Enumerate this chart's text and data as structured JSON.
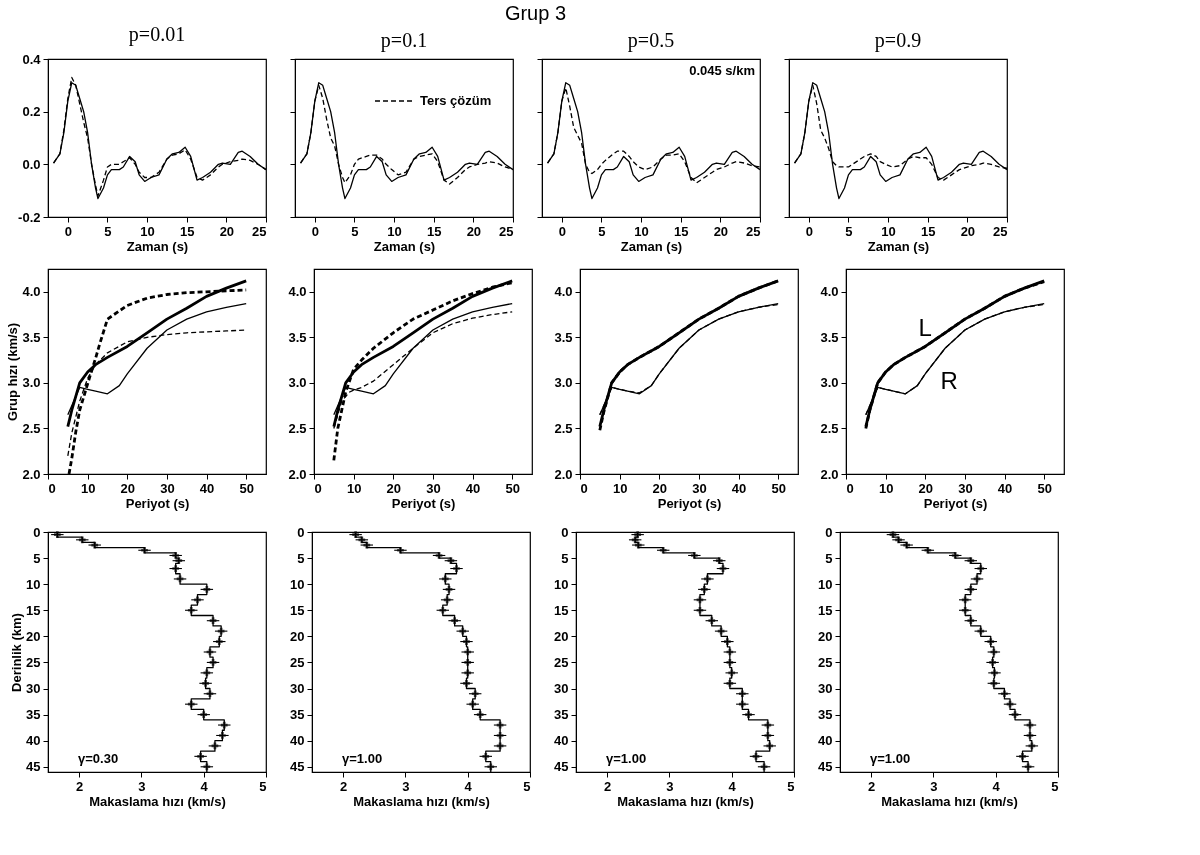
{
  "chart_data": [
    {
      "type": "line",
      "title": "p=0.01",
      "annotations": [
        "Grup 3"
      ],
      "xlabel": "Zaman (s)",
      "xlim": [
        -2.5,
        25
      ],
      "xticks": [
        0,
        5,
        10,
        15,
        20,
        25
      ],
      "ylim": [
        -0.2,
        0.4
      ],
      "yticks": [
        -0.2,
        {
          "value": 0,
          "label": "0.0"
        },
        0.2,
        0.4
      ],
      "x": [
        -1.8,
        -1,
        -0.5,
        0,
        0.5,
        1,
        1.5,
        2,
        2.5,
        3,
        3.5,
        3.8,
        4.5,
        5,
        5.5,
        6.5,
        7,
        7.8,
        8.5,
        9,
        9.7,
        10.5,
        11.5,
        12.5,
        13.2,
        14,
        14.8,
        15.5,
        16.3,
        17,
        18,
        19,
        19.5,
        20.5,
        21.5,
        22,
        23,
        24,
        25
      ],
      "series": [
        {
          "color": "#000000",
          "line_style": "solid",
          "values": [
            0.005,
            0.04,
            0.12,
            0.24,
            0.31,
            0.3,
            0.25,
            0.2,
            0.12,
            0.0,
            -0.09,
            -0.13,
            -0.09,
            -0.04,
            -0.02,
            -0.02,
            -0.01,
            0.03,
            0.01,
            -0.04,
            -0.065,
            -0.05,
            -0.04,
            0.02,
            0.04,
            0.045,
            0.065,
            0.03,
            -0.06,
            -0.05,
            -0.03,
            0.0,
            0.005,
            0.0,
            0.045,
            0.05,
            0.03,
            0.0,
            -0.02
          ]
        },
        {
          "color": "#000000",
          "line_style": "dashed",
          "values": [
            0.005,
            0.04,
            0.13,
            0.25,
            0.33,
            0.3,
            0.23,
            0.16,
            0.1,
            0.0,
            -0.08,
            -0.12,
            -0.06,
            -0.01,
            0.0,
            0.0,
            0.01,
            0.025,
            0.0,
            -0.03,
            -0.05,
            -0.05,
            -0.03,
            0.02,
            0.035,
            0.04,
            0.055,
            0.02,
            -0.05,
            -0.06,
            -0.04,
            -0.01,
            0.0,
            0.01,
            0.015,
            0.02,
            0.015,
            0.0,
            -0.02
          ]
        }
      ]
    },
    {
      "type": "line",
      "title": "p=0.1",
      "xlabel": "Zaman (s)",
      "xlim": [
        -2.5,
        25
      ],
      "xticks": [
        0,
        5,
        10,
        15,
        20,
        25
      ],
      "ylim": [
        -0.2,
        0.4
      ],
      "yticks": [
        -0.2,
        0,
        0.2,
        0.4
      ],
      "tick_labels": "x",
      "legend": "top right",
      "x": [
        -1.8,
        -1,
        -0.5,
        0,
        0.5,
        1,
        1.5,
        2,
        2.5,
        3,
        3.5,
        3.8,
        4.5,
        5,
        5.5,
        6.5,
        7,
        7.8,
        8.5,
        9,
        9.7,
        10.5,
        11.5,
        12.5,
        13.2,
        14,
        14.8,
        15.5,
        16.3,
        17,
        18,
        19,
        19.5,
        20.5,
        21.5,
        22,
        23,
        24,
        25
      ],
      "series": [
        {
          "color": "#000000",
          "line_style": "solid",
          "values": [
            0.005,
            0.04,
            0.12,
            0.24,
            0.31,
            0.3,
            0.25,
            0.2,
            0.12,
            0.0,
            -0.09,
            -0.13,
            -0.09,
            -0.04,
            -0.02,
            -0.02,
            -0.01,
            0.03,
            0.01,
            -0.04,
            -0.065,
            -0.05,
            -0.04,
            0.02,
            0.04,
            0.045,
            0.065,
            0.03,
            -0.06,
            -0.05,
            -0.03,
            0.0,
            0.005,
            0.0,
            0.045,
            0.05,
            0.03,
            0.0,
            -0.02
          ]
        },
        {
          "name": "Ters çözüm",
          "color": "#000000",
          "line_style": "dashed",
          "values": [
            0.005,
            0.04,
            0.12,
            0.24,
            0.3,
            0.25,
            0.17,
            0.1,
            0.07,
            0.0,
            -0.05,
            -0.07,
            -0.04,
            0.0,
            0.02,
            0.03,
            0.035,
            0.035,
            0.02,
            0.0,
            -0.02,
            -0.04,
            -0.03,
            0.02,
            0.03,
            0.035,
            0.04,
            0.01,
            -0.06,
            -0.075,
            -0.05,
            -0.02,
            -0.01,
            0.0,
            0.005,
            0.01,
            0.005,
            -0.01,
            -0.02
          ]
        }
      ]
    },
    {
      "type": "line",
      "title": "p=0.5",
      "annotations": [
        "0.045 s/km"
      ],
      "xlabel": "Zaman (s)",
      "xlim": [
        -2.5,
        25
      ],
      "xticks": [
        0,
        5,
        10,
        15,
        20,
        25
      ],
      "ylim": [
        -0.2,
        0.4
      ],
      "yticks": [
        -0.2,
        0,
        0.2,
        0.4
      ],
      "tick_labels": "x",
      "x": [
        -1.8,
        -1,
        -0.5,
        0,
        0.5,
        1,
        1.5,
        2,
        2.5,
        3,
        3.5,
        3.8,
        4.5,
        5,
        5.5,
        6.5,
        7,
        7.8,
        8.5,
        9,
        9.7,
        10.5,
        11.5,
        12.5,
        13.2,
        14,
        14.8,
        15.5,
        16.3,
        17,
        18,
        19,
        19.5,
        20.5,
        21.5,
        22,
        23,
        24,
        25
      ],
      "series": [
        {
          "color": "#000000",
          "line_style": "solid",
          "values": [
            0.005,
            0.04,
            0.12,
            0.24,
            0.31,
            0.3,
            0.25,
            0.2,
            0.12,
            0.0,
            -0.09,
            -0.13,
            -0.09,
            -0.04,
            -0.02,
            -0.02,
            -0.01,
            0.03,
            0.01,
            -0.04,
            -0.065,
            -0.05,
            -0.04,
            0.02,
            0.04,
            0.045,
            0.065,
            0.03,
            -0.06,
            -0.05,
            -0.03,
            0.0,
            0.005,
            0.0,
            0.045,
            0.05,
            0.03,
            0.0,
            -0.02
          ]
        },
        {
          "color": "#000000",
          "line_style": "dashed",
          "values": [
            0.005,
            0.04,
            0.12,
            0.24,
            0.29,
            0.22,
            0.14,
            0.11,
            0.08,
            0.0,
            -0.03,
            -0.035,
            -0.02,
            0.0,
            0.015,
            0.04,
            0.05,
            0.05,
            0.03,
            0.01,
            -0.01,
            -0.02,
            -0.01,
            0.02,
            0.035,
            0.035,
            0.04,
            0.01,
            -0.05,
            -0.07,
            -0.05,
            -0.03,
            -0.02,
            -0.01,
            0.005,
            0.01,
            0.005,
            -0.005,
            -0.01
          ]
        }
      ]
    },
    {
      "type": "line",
      "title": "p=0.9",
      "xlabel": "Zaman (s)",
      "xlim": [
        -2.5,
        25
      ],
      "xticks": [
        0,
        5,
        10,
        15,
        20,
        25
      ],
      "ylim": [
        -0.2,
        0.4
      ],
      "yticks": [
        -0.2,
        0,
        0.2,
        0.4
      ],
      "tick_labels": "x",
      "x": [
        -1.8,
        -1,
        -0.5,
        0,
        0.5,
        1,
        1.5,
        2,
        2.5,
        3,
        3.5,
        3.8,
        4.5,
        5,
        5.5,
        6.5,
        7,
        7.8,
        8.5,
        9,
        9.7,
        10.5,
        11.5,
        12.5,
        13.2,
        14,
        14.8,
        15.5,
        16.3,
        17,
        18,
        19,
        19.5,
        20.5,
        21.5,
        22,
        23,
        24,
        25
      ],
      "series": [
        {
          "color": "#000000",
          "line_style": "solid",
          "values": [
            0.005,
            0.04,
            0.12,
            0.24,
            0.31,
            0.3,
            0.25,
            0.2,
            0.12,
            0.0,
            -0.09,
            -0.13,
            -0.09,
            -0.04,
            -0.02,
            -0.02,
            -0.01,
            0.03,
            0.01,
            -0.04,
            -0.065,
            -0.05,
            -0.04,
            0.02,
            0.04,
            0.045,
            0.065,
            0.03,
            -0.06,
            -0.05,
            -0.03,
            0.0,
            0.005,
            0.0,
            0.045,
            0.05,
            0.03,
            0.0,
            -0.02
          ]
        },
        {
          "color": "#000000",
          "line_style": "dashed",
          "values": [
            0.005,
            0.04,
            0.12,
            0.24,
            0.3,
            0.23,
            0.13,
            0.1,
            0.06,
            0.01,
            -0.005,
            -0.01,
            -0.01,
            -0.01,
            0.0,
            0.02,
            0.03,
            0.04,
            0.03,
            0.01,
            0.0,
            -0.01,
            -0.005,
            0.02,
            0.03,
            0.025,
            0.025,
            0.0,
            -0.05,
            -0.06,
            -0.04,
            -0.02,
            -0.015,
            -0.005,
            0.0,
            0.005,
            0.0,
            -0.01,
            -0.015
          ]
        }
      ]
    },
    {
      "type": "line",
      "ylabel": "Grup hızı (km/s)",
      "xlabel": "Periyot (s)",
      "xlim": [
        0,
        55
      ],
      "xticks": [
        0,
        10,
        20,
        30,
        40,
        50
      ],
      "ylim": [
        2.0,
        4.25
      ],
      "yticks": [
        {
          "value": 2,
          "label": "2.0"
        },
        2.5,
        {
          "value": 3,
          "label": "3.0"
        },
        3.5,
        {
          "value": 4,
          "label": "4.0"
        }
      ],
      "series": [
        {
          "color": "#000000",
          "line_style": "solid",
          "x": [
            5,
            6,
            8,
            10,
            12,
            15,
            20,
            25,
            30,
            35,
            40,
            45,
            50
          ],
          "values": [
            2.52,
            2.7,
            3.0,
            3.12,
            3.2,
            3.28,
            3.4,
            3.55,
            3.7,
            3.82,
            3.95,
            4.04,
            4.12
          ]
        },
        {
          "color": "#000000",
          "line_style": "dashed",
          "x": [
            5.3,
            6,
            7,
            8,
            10,
            12,
            13,
            15,
            20,
            25,
            30,
            35,
            40,
            45,
            50
          ],
          "values": [
            2.0,
            2.17,
            2.46,
            2.7,
            2.99,
            3.27,
            3.42,
            3.7,
            3.85,
            3.93,
            3.97,
            3.99,
            4.0,
            4.01,
            4.02
          ]
        },
        {
          "color": "#000000",
          "line_style": "solid",
          "x": [
            5,
            8,
            10,
            12,
            15,
            18,
            20,
            25,
            30,
            35,
            40,
            45,
            50
          ],
          "values": [
            2.65,
            2.95,
            2.93,
            2.91,
            2.88,
            2.97,
            3.1,
            3.38,
            3.58,
            3.7,
            3.78,
            3.83,
            3.87
          ]
        },
        {
          "color": "#000000",
          "line_style": "dashed",
          "x": [
            5,
            6,
            8,
            10,
            12,
            15,
            20,
            25,
            30,
            35,
            40,
            45,
            50
          ],
          "values": [
            2.2,
            2.45,
            2.8,
            3.05,
            3.2,
            3.33,
            3.45,
            3.5,
            3.53,
            3.55,
            3.56,
            3.57,
            3.58
          ]
        }
      ]
    },
    {
      "type": "line",
      "xlabel": "Periyot (s)",
      "xlim": [
        0,
        55
      ],
      "xticks": [
        0,
        10,
        20,
        30,
        40,
        50
      ],
      "ylim": [
        2.0,
        4.25
      ],
      "yticks": [
        {
          "value": 2,
          "label": "2.0"
        },
        2.5,
        {
          "value": 3,
          "label": "3.0"
        },
        3.5,
        {
          "value": 4,
          "label": "4.0"
        }
      ],
      "series": [
        {
          "color": "#000000",
          "line_style": "solid",
          "x": [
            5,
            6,
            8,
            10,
            12,
            15,
            20,
            25,
            30,
            35,
            40,
            45,
            50
          ],
          "values": [
            2.52,
            2.7,
            3.0,
            3.12,
            3.2,
            3.28,
            3.4,
            3.55,
            3.7,
            3.82,
            3.95,
            4.04,
            4.12
          ]
        },
        {
          "color": "#000000",
          "line_style": "dashed",
          "x": [
            5,
            6,
            8,
            10,
            12,
            15,
            20,
            25,
            30,
            35,
            40,
            45,
            50
          ],
          "values": [
            2.15,
            2.5,
            2.9,
            3.15,
            3.25,
            3.38,
            3.55,
            3.7,
            3.8,
            3.9,
            3.98,
            4.05,
            4.1
          ]
        },
        {
          "color": "#000000",
          "line_style": "solid",
          "x": [
            5,
            8,
            10,
            12,
            15,
            18,
            20,
            25,
            30,
            35,
            40,
            45,
            50
          ],
          "values": [
            2.65,
            2.95,
            2.93,
            2.91,
            2.88,
            2.97,
            3.1,
            3.38,
            3.58,
            3.7,
            3.78,
            3.83,
            3.87
          ]
        },
        {
          "color": "#000000",
          "line_style": "dashed",
          "x": [
            5,
            7,
            9,
            10,
            12,
            15,
            20,
            25,
            30,
            35,
            40,
            45,
            50
          ],
          "values": [
            2.5,
            2.8,
            2.9,
            2.92,
            2.95,
            3.02,
            3.2,
            3.38,
            3.55,
            3.65,
            3.71,
            3.75,
            3.78
          ]
        }
      ]
    },
    {
      "type": "line",
      "xlabel": "Periyot (s)",
      "xlim": [
        0,
        55
      ],
      "xticks": [
        0,
        10,
        20,
        30,
        40,
        50
      ],
      "ylim": [
        2.0,
        4.25
      ],
      "yticks": [
        {
          "value": 2,
          "label": "2.0"
        },
        2.5,
        {
          "value": 3,
          "label": "3.0"
        },
        3.5,
        {
          "value": 4,
          "label": "4.0"
        }
      ],
      "series": [
        {
          "color": "#000000",
          "line_style": "solid",
          "x": [
            5,
            6,
            8,
            10,
            12,
            15,
            20,
            25,
            30,
            35,
            40,
            45,
            50
          ],
          "values": [
            2.52,
            2.7,
            3.0,
            3.12,
            3.2,
            3.28,
            3.4,
            3.55,
            3.7,
            3.82,
            3.95,
            4.04,
            4.12
          ]
        },
        {
          "color": "#000000",
          "line_style": "dashed",
          "x": [
            5,
            6,
            8,
            10,
            12,
            15,
            20,
            25,
            30,
            35,
            40,
            45,
            50
          ],
          "values": [
            2.48,
            2.68,
            3.0,
            3.12,
            3.2,
            3.28,
            3.4,
            3.55,
            3.7,
            3.82,
            3.95,
            4.04,
            4.12
          ]
        },
        {
          "color": "#000000",
          "line_style": "solid",
          "x": [
            5,
            8,
            10,
            12,
            15,
            18,
            20,
            25,
            30,
            35,
            40,
            45,
            50
          ],
          "values": [
            2.65,
            2.95,
            2.93,
            2.91,
            2.88,
            2.97,
            3.1,
            3.38,
            3.58,
            3.7,
            3.78,
            3.83,
            3.87
          ]
        },
        {
          "color": "#000000",
          "line_style": "dashed",
          "x": [
            5,
            8,
            10,
            12,
            15,
            18,
            20,
            25,
            30,
            35,
            40,
            45,
            50
          ],
          "values": [
            2.65,
            2.95,
            2.93,
            2.91,
            2.89,
            2.97,
            3.1,
            3.38,
            3.58,
            3.7,
            3.78,
            3.83,
            3.86
          ]
        }
      ]
    },
    {
      "type": "line",
      "xlabel": "Periyot (s)",
      "xlim": [
        0,
        55
      ],
      "xticks": [
        0,
        10,
        20,
        30,
        40,
        50
      ],
      "ylim": [
        2.0,
        4.25
      ],
      "yticks": [
        {
          "value": 2,
          "label": "2.0"
        },
        2.5,
        {
          "value": 3,
          "label": "3.0"
        },
        3.5,
        {
          "value": 4,
          "label": "4.0"
        }
      ],
      "annotations": [
        {
          "text": "L",
          "x": 20,
          "y": 3.4
        },
        {
          "text": "R",
          "x": 25,
          "y": 3.38
        }
      ],
      "series": [
        {
          "color": "#000000",
          "line_style": "solid",
          "x": [
            5,
            6,
            8,
            10,
            12,
            15,
            20,
            25,
            30,
            35,
            40,
            45,
            50
          ],
          "values": [
            2.52,
            2.7,
            3.0,
            3.12,
            3.2,
            3.28,
            3.4,
            3.55,
            3.7,
            3.82,
            3.95,
            4.04,
            4.12
          ]
        },
        {
          "color": "#000000",
          "line_style": "dashed",
          "x": [
            5,
            6,
            8,
            10,
            12,
            15,
            20,
            25,
            30,
            35,
            40,
            45,
            50
          ],
          "values": [
            2.5,
            2.7,
            3.0,
            3.12,
            3.2,
            3.28,
            3.4,
            3.55,
            3.7,
            3.82,
            3.95,
            4.04,
            4.11
          ]
        },
        {
          "color": "#000000",
          "line_style": "solid",
          "x": [
            5,
            8,
            10,
            12,
            15,
            18,
            20,
            25,
            30,
            35,
            40,
            45,
            50
          ],
          "values": [
            2.65,
            2.95,
            2.93,
            2.91,
            2.88,
            2.97,
            3.1,
            3.38,
            3.58,
            3.7,
            3.78,
            3.83,
            3.87
          ]
        },
        {
          "color": "#000000",
          "line_style": "dashed",
          "x": [
            5,
            8,
            10,
            12,
            15,
            18,
            20,
            25,
            30,
            35,
            40,
            45,
            50
          ],
          "values": [
            2.65,
            2.95,
            2.93,
            2.91,
            2.88,
            2.97,
            3.1,
            3.38,
            3.58,
            3.7,
            3.78,
            3.83,
            3.86
          ]
        }
      ]
    },
    {
      "type": "line",
      "ylabel": "Derinlik (km)",
      "xlabel": "Makaslama hızı (km/s)",
      "xlim": [
        1.5,
        5
      ],
      "xticks": [
        2,
        3,
        4,
        5
      ],
      "ylim": [
        46,
        0
      ],
      "yticks": [
        0,
        5,
        10,
        15,
        20,
        25,
        30,
        35,
        40,
        45
      ],
      "annotations": [
        "γ=0.30"
      ],
      "series": [
        {
          "color": "#000000",
          "line_style": "solid",
          "x": [
            1.65,
            1.65,
            2.05,
            2.05,
            2.25,
            2.25,
            3.05,
            3.05,
            3.55,
            3.55,
            3.6,
            3.6,
            3.55,
            3.55,
            3.62,
            3.62,
            4.05,
            4.05,
            3.9,
            3.9,
            3.8,
            3.8,
            4.15,
            4.15,
            4.28,
            4.28,
            4.25,
            4.25,
            4.1,
            4.1,
            4.15,
            4.15,
            4.05,
            4.05,
            4.03,
            4.03,
            4.1,
            4.1,
            3.8,
            3.8,
            4.0,
            4.0,
            4.33,
            4.33,
            4.3,
            4.3,
            4.18,
            4.18,
            3.95,
            3.95,
            4.05,
            4.05
          ],
          "values": [
            0,
            1,
            1,
            2,
            2,
            3,
            3,
            4,
            4,
            5,
            5,
            6,
            6,
            8,
            8,
            10,
            10,
            12,
            12,
            14,
            14,
            16,
            16,
            18,
            18,
            20,
            20,
            22,
            22,
            24,
            24,
            26,
            26,
            28,
            28,
            30,
            30,
            32,
            32,
            34,
            34,
            36,
            36,
            38,
            38,
            40,
            40,
            42,
            42,
            44,
            44,
            46
          ]
        },
        {
          "type": "scatter",
          "marker": "cross",
          "color": "#000000",
          "x": [
            1.65,
            2.05,
            2.25,
            3.05,
            3.55,
            3.6,
            3.55,
            3.62,
            4.05,
            3.9,
            3.8,
            4.15,
            4.28,
            4.25,
            4.1,
            4.15,
            4.05,
            4.03,
            4.1,
            3.8,
            4.0,
            4.33,
            4.3,
            4.18,
            3.95,
            4.05
          ],
          "values": [
            0.5,
            1.5,
            2.5,
            3.5,
            4.5,
            5.5,
            7,
            9,
            11,
            13,
            15,
            17,
            19,
            21,
            23,
            25,
            27,
            29,
            31,
            33,
            35,
            37,
            39,
            41,
            43,
            45
          ],
          "xerrors": [
            0.1,
            0.1,
            0.1,
            0.1,
            0.1,
            0.1,
            0.1,
            0.1,
            0.1,
            0.1,
            0.1,
            0.1,
            0.1,
            0.1,
            0.1,
            0.1,
            0.1,
            0.1,
            0.1,
            0.1,
            0.1,
            0.1,
            0.1,
            0.1,
            0.1,
            0.1
          ]
        }
      ]
    },
    {
      "type": "line",
      "xlabel": "Makaslama hızı (km/s)",
      "xlim": [
        1.5,
        5
      ],
      "xticks": [
        2,
        3,
        4,
        5
      ],
      "ylim": [
        46,
        0
      ],
      "yticks": [
        0,
        5,
        10,
        15,
        20,
        25,
        30,
        35,
        40,
        45
      ],
      "annotations": [
        "γ=1.00"
      ],
      "series": [
        {
          "color": "#000000",
          "line_style": "solid",
          "x": [
            2.2,
            2.2,
            2.3,
            2.3,
            2.38,
            2.38,
            2.92,
            2.92,
            3.54,
            3.54,
            3.73,
            3.73,
            3.82,
            3.82,
            3.64,
            3.64,
            3.7,
            3.7,
            3.67,
            3.67,
            3.6,
            3.6,
            3.79,
            3.79,
            3.92,
            3.92,
            3.98,
            3.98,
            4.0,
            4.0,
            4.0,
            4.0,
            4.0,
            4.0,
            3.98,
            3.98,
            4.12,
            4.12,
            4.08,
            4.08,
            4.2,
            4.2,
            4.52,
            4.52,
            4.52,
            4.52,
            4.52,
            4.52,
            4.29,
            4.29,
            4.37,
            4.37
          ],
          "values": [
            0,
            1,
            1,
            2,
            2,
            3,
            3,
            4,
            4,
            5,
            5,
            6,
            6,
            8,
            8,
            10,
            10,
            12,
            12,
            14,
            14,
            16,
            16,
            18,
            18,
            20,
            20,
            22,
            22,
            24,
            24,
            26,
            26,
            28,
            28,
            30,
            30,
            32,
            32,
            34,
            34,
            36,
            36,
            38,
            38,
            40,
            40,
            42,
            42,
            44,
            44,
            46
          ]
        },
        {
          "type": "scatter",
          "marker": "cross",
          "color": "#000000",
          "x": [
            2.2,
            2.3,
            2.38,
            2.92,
            3.54,
            3.73,
            3.82,
            3.64,
            3.7,
            3.67,
            3.6,
            3.79,
            3.92,
            3.98,
            4.0,
            4.0,
            4.0,
            3.98,
            4.12,
            4.08,
            4.2,
            4.52,
            4.52,
            4.52,
            4.29,
            4.37
          ],
          "values": [
            0.5,
            1.5,
            2.5,
            3.5,
            4.5,
            5.5,
            7,
            9,
            11,
            13,
            15,
            17,
            19,
            21,
            23,
            25,
            27,
            29,
            31,
            33,
            35,
            37,
            39,
            41,
            43,
            45
          ],
          "xerrors": [
            0.1,
            0.1,
            0.1,
            0.1,
            0.1,
            0.1,
            0.1,
            0.1,
            0.1,
            0.1,
            0.1,
            0.1,
            0.1,
            0.1,
            0.1,
            0.1,
            0.1,
            0.1,
            0.1,
            0.1,
            0.1,
            0.1,
            0.1,
            0.1,
            0.1,
            0.1
          ]
        }
      ]
    },
    {
      "type": "line",
      "xlabel": "Makaslama hızı (km/s)",
      "xlim": [
        1.5,
        5
      ],
      "xticks": [
        2,
        3,
        4,
        5
      ],
      "ylim": [
        46,
        0
      ],
      "yticks": [
        0,
        5,
        10,
        15,
        20,
        25,
        30,
        35,
        40,
        45
      ],
      "annotations": [
        "γ=1.00"
      ],
      "series": [
        {
          "color": "#000000",
          "line_style": "solid",
          "x": [
            2.49,
            2.49,
            2.45,
            2.45,
            2.5,
            2.5,
            2.9,
            2.9,
            3.4,
            3.4,
            3.8,
            3.8,
            3.86,
            3.86,
            3.61,
            3.61,
            3.56,
            3.56,
            3.49,
            3.49,
            3.49,
            3.49,
            3.68,
            3.68,
            3.83,
            3.83,
            3.93,
            3.93,
            3.97,
            3.97,
            3.97,
            3.97,
            4.0,
            4.0,
            3.97,
            3.97,
            4.17,
            4.17,
            4.17,
            4.17,
            4.27,
            4.27,
            4.58,
            4.58,
            4.58,
            4.58,
            4.61,
            4.61,
            4.39,
            4.39,
            4.52,
            4.52
          ],
          "values": [
            0,
            1,
            1,
            2,
            2,
            3,
            3,
            4,
            4,
            5,
            5,
            6,
            6,
            8,
            8,
            10,
            10,
            12,
            12,
            14,
            14,
            16,
            16,
            18,
            18,
            20,
            20,
            22,
            22,
            24,
            24,
            26,
            26,
            28,
            28,
            30,
            30,
            32,
            32,
            34,
            34,
            36,
            36,
            38,
            38,
            40,
            40,
            42,
            42,
            44,
            44,
            46
          ]
        },
        {
          "type": "scatter",
          "marker": "cross",
          "color": "#000000",
          "x": [
            2.49,
            2.45,
            2.5,
            2.9,
            3.4,
            3.8,
            3.86,
            3.61,
            3.56,
            3.49,
            3.49,
            3.68,
            3.83,
            3.93,
            3.97,
            3.97,
            4.0,
            3.97,
            4.17,
            4.17,
            4.27,
            4.58,
            4.58,
            4.61,
            4.39,
            4.52
          ],
          "values": [
            0.5,
            1.5,
            2.5,
            3.5,
            4.5,
            5.5,
            7,
            9,
            11,
            13,
            15,
            17,
            19,
            21,
            23,
            25,
            27,
            29,
            31,
            33,
            35,
            37,
            39,
            41,
            43,
            45
          ],
          "xerrors": [
            0.1,
            0.1,
            0.1,
            0.1,
            0.1,
            0.1,
            0.1,
            0.1,
            0.1,
            0.1,
            0.1,
            0.1,
            0.1,
            0.1,
            0.1,
            0.1,
            0.1,
            0.1,
            0.1,
            0.1,
            0.1,
            0.1,
            0.1,
            0.1,
            0.1,
            0.1
          ]
        }
      ]
    },
    {
      "type": "line",
      "xlabel": "Makaslama hızı (km/s)",
      "xlim": [
        1.5,
        5
      ],
      "xticks": [
        2,
        3,
        4,
        5
      ],
      "ylim": [
        46,
        0
      ],
      "yticks": [
        0,
        5,
        10,
        15,
        20,
        25,
        30,
        35,
        40,
        45
      ],
      "annotations": [
        "γ=1.00"
      ],
      "series": [
        {
          "color": "#000000",
          "line_style": "solid",
          "x": [
            2.35,
            2.35,
            2.44,
            2.44,
            2.57,
            2.57,
            2.91,
            2.91,
            3.35,
            3.35,
            3.6,
            3.6,
            3.76,
            3.76,
            3.7,
            3.7,
            3.6,
            3.6,
            3.51,
            3.51,
            3.51,
            3.51,
            3.6,
            3.6,
            3.76,
            3.76,
            3.92,
            3.92,
            3.97,
            3.97,
            3.95,
            3.95,
            3.98,
            3.98,
            3.97,
            3.97,
            4.14,
            4.14,
            4.23,
            4.23,
            4.31,
            4.31,
            4.55,
            4.55,
            4.55,
            4.55,
            4.58,
            4.58,
            4.43,
            4.43,
            4.52,
            4.52
          ],
          "values": [
            0,
            1,
            1,
            2,
            2,
            3,
            3,
            4,
            4,
            5,
            5,
            6,
            6,
            8,
            8,
            10,
            10,
            12,
            12,
            14,
            14,
            16,
            16,
            18,
            18,
            20,
            20,
            22,
            22,
            24,
            24,
            26,
            26,
            28,
            28,
            30,
            30,
            32,
            32,
            34,
            34,
            36,
            36,
            38,
            38,
            40,
            40,
            42,
            42,
            44,
            44,
            46
          ]
        },
        {
          "type": "scatter",
          "marker": "cross",
          "color": "#000000",
          "x": [
            2.35,
            2.44,
            2.57,
            2.91,
            3.35,
            3.6,
            3.76,
            3.7,
            3.6,
            3.51,
            3.51,
            3.6,
            3.76,
            3.92,
            3.97,
            3.95,
            3.98,
            3.97,
            4.14,
            4.23,
            4.31,
            4.55,
            4.55,
            4.58,
            4.43,
            4.52
          ],
          "values": [
            0.5,
            1.5,
            2.5,
            3.5,
            4.5,
            5.5,
            7,
            9,
            11,
            13,
            15,
            17,
            19,
            21,
            23,
            25,
            27,
            29,
            31,
            33,
            35,
            37,
            39,
            41,
            43,
            45
          ],
          "xerrors": [
            0.1,
            0.1,
            0.1,
            0.1,
            0.1,
            0.1,
            0.1,
            0.1,
            0.1,
            0.1,
            0.1,
            0.1,
            0.1,
            0.1,
            0.1,
            0.1,
            0.1,
            0.1,
            0.1,
            0.1,
            0.1,
            0.1,
            0.1,
            0.1,
            0.1,
            0.1
          ]
        }
      ]
    }
  ]
}
